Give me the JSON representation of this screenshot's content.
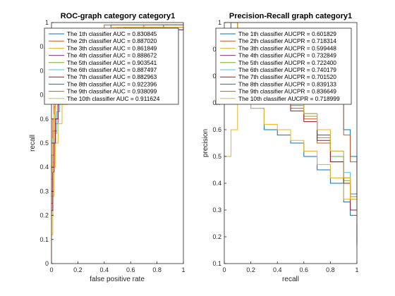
{
  "chart_data": [
    {
      "type": "line",
      "title": "ROC-graph category category1",
      "xlabel": "false positive rate",
      "ylabel": "recall",
      "xlim": [
        0,
        1
      ],
      "ylim": [
        0,
        1
      ],
      "xticks": [
        "0",
        "0.2",
        "0.4",
        "0.6",
        "0.8",
        "1"
      ],
      "yticks": [
        "0",
        "0.1",
        "0.2",
        "0.3",
        "0.4",
        "0.5",
        "0.6",
        "0.7",
        "0.8",
        "0.9",
        "1"
      ],
      "grid": false,
      "legend_position": "top-left",
      "legend": [
        "The 1th classifier AUC = 0.830845",
        "The 2th classifier AUC = 0.887020",
        "The 3th classifier AUC = 0.861849",
        "The 4th classifier AUC = 0.888672",
        "The 5th classifier AUC = 0.903541",
        "The 6th classifier AUC = 0.887497",
        "The 7th classifier AUC = 0.882963",
        "The 8th classifier AUC = 0.922396",
        "The 9th classifier AUC = 0.938099",
        "The 10th classifier AUC = 0.911624"
      ],
      "series": [
        {
          "color": "#0072BD",
          "x": [
            0,
            0,
            0.01,
            0.01,
            0.02,
            0.03,
            0.05,
            0.08,
            0.12,
            0.2,
            0.35,
            0.6,
            0.85,
            1
          ],
          "y": [
            0,
            0.2,
            0.3,
            0.45,
            0.55,
            0.6,
            0.68,
            0.75,
            0.82,
            0.88,
            0.93,
            0.97,
            0.99,
            1
          ]
        },
        {
          "color": "#D95319",
          "x": [
            0,
            0,
            0.01,
            0.02,
            0.03,
            0.05,
            0.07,
            0.1,
            0.15,
            0.25,
            0.45,
            0.7,
            1
          ],
          "y": [
            0,
            0.25,
            0.4,
            0.5,
            0.58,
            0.66,
            0.72,
            0.8,
            0.86,
            0.92,
            0.96,
            0.99,
            1
          ]
        },
        {
          "color": "#EDB120",
          "x": [
            0,
            0,
            0.01,
            0.02,
            0.03,
            0.05,
            0.08,
            0.12,
            0.2,
            0.3,
            0.5,
            0.75,
            1
          ],
          "y": [
            0,
            0.12,
            0.28,
            0.4,
            0.5,
            0.58,
            0.66,
            0.74,
            0.82,
            0.88,
            0.94,
            0.98,
            1
          ]
        },
        {
          "color": "#7E2F8E",
          "x": [
            0,
            0,
            0.01,
            0.02,
            0.04,
            0.06,
            0.09,
            0.14,
            0.22,
            0.35,
            0.55,
            1
          ],
          "y": [
            0,
            0.3,
            0.45,
            0.55,
            0.63,
            0.7,
            0.77,
            0.84,
            0.9,
            0.94,
            0.98,
            1
          ]
        },
        {
          "color": "#77AC30",
          "x": [
            0,
            0,
            0.01,
            0.02,
            0.03,
            0.05,
            0.08,
            0.12,
            0.18,
            0.3,
            0.5,
            1
          ],
          "y": [
            0,
            0.35,
            0.5,
            0.6,
            0.68,
            0.74,
            0.8,
            0.86,
            0.91,
            0.95,
            0.98,
            1
          ]
        },
        {
          "color": "#4DBEEE",
          "x": [
            0,
            0,
            0.01,
            0.02,
            0.04,
            0.06,
            0.09,
            0.13,
            0.2,
            0.32,
            0.55,
            1
          ],
          "y": [
            0,
            0.28,
            0.42,
            0.54,
            0.63,
            0.7,
            0.77,
            0.83,
            0.89,
            0.93,
            0.97,
            1
          ]
        },
        {
          "color": "#A2142F",
          "x": [
            0,
            0,
            0.01,
            0.02,
            0.03,
            0.05,
            0.08,
            0.12,
            0.2,
            0.32,
            0.52,
            1
          ],
          "y": [
            0,
            0.22,
            0.38,
            0.5,
            0.6,
            0.68,
            0.75,
            0.82,
            0.88,
            0.93,
            0.97,
            1
          ]
        },
        {
          "color": "#0072BD",
          "x": [
            0,
            0,
            0.01,
            0.02,
            0.03,
            0.05,
            0.07,
            0.1,
            0.15,
            0.25,
            0.45,
            1
          ],
          "y": [
            0,
            0.4,
            0.55,
            0.65,
            0.72,
            0.78,
            0.83,
            0.88,
            0.92,
            0.96,
            0.99,
            1
          ]
        },
        {
          "color": "#D95319",
          "x": [
            0,
            0,
            0.01,
            0.02,
            0.03,
            0.04,
            0.06,
            0.09,
            0.14,
            0.22,
            0.4,
            1
          ],
          "y": [
            0,
            0.45,
            0.6,
            0.7,
            0.77,
            0.82,
            0.87,
            0.91,
            0.94,
            0.97,
            0.99,
            1
          ]
        },
        {
          "color": "#EDB120",
          "x": [
            0,
            0,
            0.01,
            0.02,
            0.03,
            0.05,
            0.07,
            0.1,
            0.16,
            0.26,
            0.45,
            1
          ],
          "y": [
            0,
            0.38,
            0.52,
            0.62,
            0.7,
            0.76,
            0.82,
            0.87,
            0.92,
            0.95,
            0.98,
            1
          ]
        }
      ]
    },
    {
      "type": "line",
      "title": "Precision-Recall graph category1",
      "xlabel": "recall",
      "ylabel": "precision",
      "xlim": [
        0,
        1
      ],
      "ylim": [
        0.1,
        1
      ],
      "xticks": [
        "0",
        "0.2",
        "0.4",
        "0.6",
        "0.8",
        "1"
      ],
      "yticks": [
        "0.1",
        "0.2",
        "0.3",
        "0.4",
        "0.5",
        "0.6",
        "0.7",
        "0.8",
        "0.9",
        "1"
      ],
      "grid": false,
      "legend_position": "top-left",
      "legend": [
        "The 1th classifier AUCPR = 0.601829",
        "The 2th classifier AUCPR = 0.718314",
        "The 3th classifier AUCPR = 0.599448",
        "The 4th classifier AUCPR = 0.732849",
        "The 5th classifier AUCPR = 0.722400",
        "The 6th classifier AUCPR = 0.740179",
        "The 7th classifier AUCPR = 0.701520",
        "The 8th classifier AUCPR = 0.839133",
        "The 9th classifier AUCPR = 0.836649",
        "The 10th classifier AUCPR = 0.718999"
      ],
      "series": [
        {
          "color": "#0072BD",
          "x": [
            0,
            0.05,
            0.1,
            0.2,
            0.3,
            0.4,
            0.5,
            0.6,
            0.7,
            0.8,
            0.9,
            0.95,
            1
          ],
          "y": [
            1,
            0.75,
            0.7,
            0.68,
            0.6,
            0.58,
            0.55,
            0.5,
            0.45,
            0.4,
            0.33,
            0.28,
            0.22
          ]
        },
        {
          "color": "#D95319",
          "x": [
            0,
            0.1,
            0.2,
            0.3,
            0.4,
            0.5,
            0.6,
            0.7,
            0.8,
            0.9,
            0.95,
            1
          ],
          "y": [
            1,
            0.85,
            0.8,
            0.76,
            0.72,
            0.68,
            0.64,
            0.55,
            0.48,
            0.4,
            0.35,
            0.28
          ]
        },
        {
          "color": "#EDB120",
          "x": [
            0,
            0.05,
            0.1,
            0.2,
            0.3,
            0.4,
            0.5,
            0.6,
            0.7,
            0.8,
            0.9,
            1
          ],
          "y": [
            0.5,
            0.6,
            0.72,
            0.68,
            0.62,
            0.6,
            0.56,
            0.52,
            0.47,
            0.42,
            0.34,
            0.25
          ]
        },
        {
          "color": "#7E2F8E",
          "x": [
            0,
            0.1,
            0.2,
            0.3,
            0.4,
            0.5,
            0.6,
            0.7,
            0.8,
            0.9,
            0.95,
            1
          ],
          "y": [
            1,
            0.88,
            0.82,
            0.78,
            0.74,
            0.7,
            0.66,
            0.58,
            0.5,
            0.42,
            0.36,
            0.3
          ]
        },
        {
          "color": "#77AC30",
          "x": [
            0,
            0.1,
            0.2,
            0.3,
            0.4,
            0.5,
            0.6,
            0.7,
            0.8,
            0.9,
            0.95,
            1
          ],
          "y": [
            1,
            0.86,
            0.8,
            0.77,
            0.72,
            0.69,
            0.65,
            0.57,
            0.5,
            0.41,
            0.35,
            0.27
          ]
        },
        {
          "color": "#4DBEEE",
          "x": [
            0,
            0.1,
            0.2,
            0.3,
            0.4,
            0.5,
            0.6,
            0.7,
            0.8,
            0.9,
            0.95,
            1
          ],
          "y": [
            1,
            0.9,
            0.82,
            0.78,
            0.75,
            0.7,
            0.66,
            0.6,
            0.52,
            0.44,
            0.36,
            0.29
          ]
        },
        {
          "color": "#A2142F",
          "x": [
            0,
            0.1,
            0.2,
            0.3,
            0.4,
            0.5,
            0.6,
            0.7,
            0.8,
            0.9,
            0.95,
            1
          ],
          "y": [
            1,
            0.84,
            0.78,
            0.75,
            0.7,
            0.67,
            0.63,
            0.56,
            0.48,
            0.4,
            0.3,
            0.17
          ]
        },
        {
          "color": "#0072BD",
          "x": [
            0,
            0.1,
            0.2,
            0.3,
            0.4,
            0.5,
            0.6,
            0.7,
            0.8,
            0.9,
            0.95,
            1
          ],
          "y": [
            1,
            0.95,
            0.92,
            0.9,
            0.88,
            0.85,
            0.82,
            0.78,
            0.7,
            0.6,
            0.5,
            0.3
          ]
        },
        {
          "color": "#D95319",
          "x": [
            0,
            0.1,
            0.2,
            0.3,
            0.4,
            0.5,
            0.6,
            0.7,
            0.8,
            0.9,
            0.95,
            1
          ],
          "y": [
            1,
            0.95,
            0.93,
            0.9,
            0.88,
            0.86,
            0.83,
            0.78,
            0.7,
            0.58,
            0.48,
            0.28
          ]
        },
        {
          "color": "#EDB120",
          "x": [
            0,
            0.1,
            0.2,
            0.3,
            0.4,
            0.5,
            0.6,
            0.7,
            0.8,
            0.9,
            0.95,
            1
          ],
          "y": [
            1,
            0.88,
            0.82,
            0.78,
            0.74,
            0.7,
            0.66,
            0.6,
            0.52,
            0.42,
            0.34,
            0.25
          ]
        }
      ]
    }
  ]
}
